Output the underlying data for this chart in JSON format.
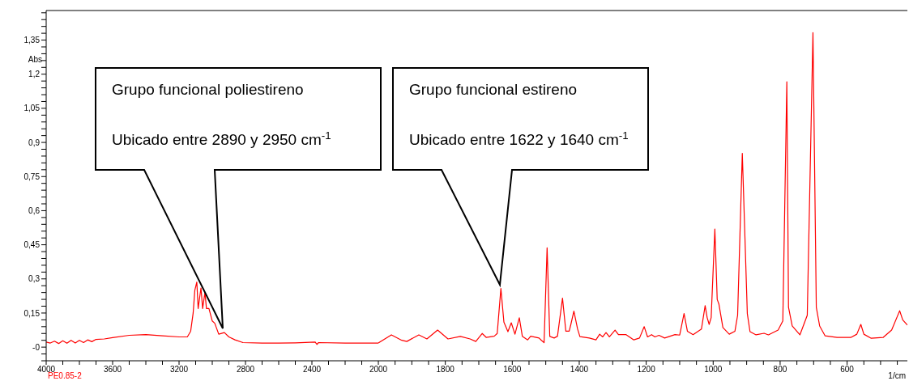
{
  "chart_data": [
    {
      "type": "line",
      "ylabel": "Abs",
      "color": "#ff0000",
      "marker": "none",
      "line_style": "solid",
      "x": [
        4000,
        3975,
        3950,
        3925,
        3900,
        3875,
        3850,
        3825,
        3800,
        3775,
        3750,
        3725,
        3700,
        3650,
        3600,
        3500,
        3400,
        3300,
        3200,
        3150,
        3130,
        3115,
        3105,
        3093,
        3085,
        3068,
        3058,
        3044,
        3035,
        3020,
        3000,
        2985,
        2961,
        2927,
        2900,
        2863,
        2815,
        2700,
        2600,
        2500,
        2380,
        2370,
        2360,
        2200,
        2000
      ],
      "values": [
        0.022,
        0.018,
        0.026,
        0.016,
        0.028,
        0.017,
        0.03,
        0.018,
        0.03,
        0.02,
        0.032,
        0.024,
        0.034,
        0.036,
        0.042,
        0.052,
        0.055,
        0.05,
        0.045,
        0.045,
        0.07,
        0.15,
        0.25,
        0.286,
        0.17,
        0.26,
        0.17,
        0.24,
        0.17,
        0.17,
        0.115,
        0.105,
        0.057,
        0.064,
        0.045,
        0.032,
        0.02,
        0.018,
        0.018,
        0.019,
        0.022,
        0.012,
        0.02,
        0.018,
        0.018
      ],
      "xlim": [
        4000,
        2000
      ],
      "xticks": [
        4000,
        {
          "value": 3900,
          "label": null
        },
        {
          "value": 3800,
          "label": null
        },
        {
          "value": 3700,
          "label": null
        },
        3600,
        {
          "value": 3500,
          "label": null
        },
        {
          "value": 3400,
          "label": null
        },
        {
          "value": 3300,
          "label": null
        },
        3200,
        {
          "value": 3100,
          "label": null
        },
        {
          "value": 3000,
          "label": null
        },
        {
          "value": 2900,
          "label": null
        },
        2800,
        {
          "value": 2700,
          "label": null
        },
        {
          "value": 2600,
          "label": null
        },
        {
          "value": 2500,
          "label": null
        },
        2400,
        {
          "value": 2300,
          "label": null
        },
        {
          "value": 2200,
          "label": null
        },
        {
          "value": 2100,
          "label": null
        },
        2000
      ],
      "ylim": [
        -0.06,
        1.48
      ],
      "yticks": [
        {
          "value": -0.06,
          "label": null
        },
        {
          "value": -0.03,
          "label": null
        },
        {
          "value": 0,
          "label": "-0"
        },
        {
          "value": 0.03,
          "label": null
        },
        {
          "value": 0.06,
          "label": null
        },
        {
          "value": 0.09,
          "label": null
        },
        {
          "value": 0.12,
          "label": null
        },
        {
          "value": 0.15,
          "label": "0,15"
        },
        {
          "value": 0.18,
          "label": null
        },
        {
          "value": 0.21,
          "label": null
        },
        {
          "value": 0.24,
          "label": null
        },
        {
          "value": 0.27,
          "label": null
        },
        {
          "value": 0.3,
          "label": "0,3"
        },
        {
          "value": 0.33,
          "label": null
        },
        {
          "value": 0.36,
          "label": null
        },
        {
          "value": 0.39,
          "label": null
        },
        {
          "value": 0.42,
          "label": null
        },
        {
          "value": 0.45,
          "label": "0,45"
        },
        {
          "value": 0.48,
          "label": null
        },
        {
          "value": 0.51,
          "label": null
        },
        {
          "value": 0.54,
          "label": null
        },
        {
          "value": 0.57,
          "label": null
        },
        {
          "value": 0.6,
          "label": "0,6"
        },
        {
          "value": 0.63,
          "label": null
        },
        {
          "value": 0.66,
          "label": null
        },
        {
          "value": 0.69,
          "label": null
        },
        {
          "value": 0.72,
          "label": null
        },
        {
          "value": 0.75,
          "label": "0,75"
        },
        {
          "value": 0.78,
          "label": null
        },
        {
          "value": 0.81,
          "label": null
        },
        {
          "value": 0.84,
          "label": null
        },
        {
          "value": 0.87,
          "label": null
        },
        {
          "value": 0.9,
          "label": "0,9"
        },
        {
          "value": 0.93,
          "label": null
        },
        {
          "value": 0.96,
          "label": null
        },
        {
          "value": 0.99,
          "label": null
        },
        {
          "value": 1.02,
          "label": null
        },
        {
          "value": 1.05,
          "label": "1,05"
        },
        {
          "value": 1.08,
          "label": null
        },
        {
          "value": 1.11,
          "label": null
        },
        {
          "value": 1.14,
          "label": null
        },
        {
          "value": 1.17,
          "label": null
        },
        {
          "value": 1.2,
          "label": "1,2"
        },
        {
          "value": 1.23,
          "label": null
        },
        {
          "value": 1.26,
          "label": null
        },
        {
          "value": 1.29,
          "label": null
        },
        {
          "value": 1.32,
          "label": null
        },
        {
          "value": 1.35,
          "label": "1,35"
        },
        {
          "value": 1.38,
          "label": null
        },
        {
          "value": 1.41,
          "label": null
        },
        {
          "value": 1.44,
          "label": null
        },
        {
          "value": 1.47,
          "label": null
        }
      ],
      "annotations": [
        "Grupo funcional poliestireno",
        "Ubicado entre 2890 y 2950 cm$^{-1}$",
        "PE0.85-2"
      ]
    },
    {
      "type": "line",
      "xlabel": "1/cm",
      "color": "#ff0000",
      "marker": "none",
      "line_style": "solid",
      "tick_labels": "x",
      "x": [
        2000,
        1961,
        1930,
        1915,
        1879,
        1855,
        1823,
        1792,
        1755,
        1726,
        1709,
        1690,
        1678,
        1654,
        1645,
        1634,
        1625,
        1613,
        1603,
        1592,
        1579,
        1570,
        1554,
        1545,
        1520,
        1513,
        1505,
        1496,
        1488,
        1475,
        1465,
        1450,
        1440,
        1430,
        1425,
        1416,
        1405,
        1398,
        1370,
        1350,
        1339,
        1330,
        1320,
        1310,
        1293,
        1283,
        1260,
        1237,
        1220,
        1206,
        1196,
        1184,
        1174,
        1162,
        1145,
        1114,
        1100,
        1087,
        1077,
        1060,
        1035,
        1024,
        1018,
        1012,
        1006,
        995,
        988,
        983,
        971,
        952,
        935,
        927,
        913,
        898,
        890,
        872,
        848,
        835,
        806,
        792,
        780,
        775,
        764,
        741,
        719,
        702,
        692,
        682,
        666,
        630,
        588,
        571,
        559,
        550,
        528,
        492,
        467,
        443,
        434,
        420
      ],
      "values": [
        0.018,
        0.054,
        0.03,
        0.025,
        0.054,
        0.036,
        0.075,
        0.036,
        0.047,
        0.036,
        0.025,
        0.06,
        0.043,
        0.048,
        0.06,
        0.258,
        0.11,
        0.068,
        0.107,
        0.057,
        0.129,
        0.048,
        0.032,
        0.048,
        0.04,
        0.03,
        0.02,
        0.437,
        0.047,
        0.04,
        0.048,
        0.215,
        0.07,
        0.07,
        0.1,
        0.158,
        0.08,
        0.046,
        0.04,
        0.032,
        0.057,
        0.045,
        0.064,
        0.045,
        0.075,
        0.055,
        0.055,
        0.032,
        0.04,
        0.09,
        0.045,
        0.055,
        0.045,
        0.052,
        0.04,
        0.055,
        0.053,
        0.148,
        0.07,
        0.055,
        0.08,
        0.182,
        0.13,
        0.1,
        0.13,
        0.519,
        0.21,
        0.19,
        0.086,
        0.057,
        0.07,
        0.14,
        0.852,
        0.147,
        0.068,
        0.054,
        0.061,
        0.054,
        0.075,
        0.115,
        1.167,
        0.175,
        0.093,
        0.054,
        0.14,
        1.383,
        0.175,
        0.093,
        0.05,
        0.043,
        0.043,
        0.057,
        0.1,
        0.057,
        0.039,
        0.043,
        0.075,
        0.16,
        0.12,
        0.097
      ],
      "xlim": [
        2000,
        420
      ],
      "xticks": [
        {
          "value": 1950,
          "label": null
        },
        {
          "value": 1900,
          "label": null
        },
        {
          "value": 1850,
          "label": null
        },
        1800,
        {
          "value": 1750,
          "label": null
        },
        {
          "value": 1700,
          "label": null
        },
        {
          "value": 1650,
          "label": null
        },
        1600,
        {
          "value": 1550,
          "label": null
        },
        {
          "value": 1500,
          "label": null
        },
        {
          "value": 1450,
          "label": null
        },
        1400,
        {
          "value": 1350,
          "label": null
        },
        {
          "value": 1300,
          "label": null
        },
        {
          "value": 1250,
          "label": null
        },
        1200,
        {
          "value": 1150,
          "label": null
        },
        {
          "value": 1100,
          "label": null
        },
        {
          "value": 1050,
          "label": null
        },
        1000,
        {
          "value": 950,
          "label": null
        },
        {
          "value": 900,
          "label": null
        },
        {
          "value": 850,
          "label": null
        },
        800,
        {
          "value": 750,
          "label": null
        },
        {
          "value": 700,
          "label": null
        },
        {
          "value": 650,
          "label": null
        },
        600,
        {
          "value": 550,
          "label": null
        },
        {
          "value": 500,
          "label": null
        },
        {
          "value": 450,
          "label": null
        }
      ],
      "ylim": [
        -0.06,
        1.48
      ],
      "annotations": [
        "Grupo funcional estireno",
        "Ubicado entre 1622 y 1640 cm$^{-1}$"
      ]
    }
  ]
}
